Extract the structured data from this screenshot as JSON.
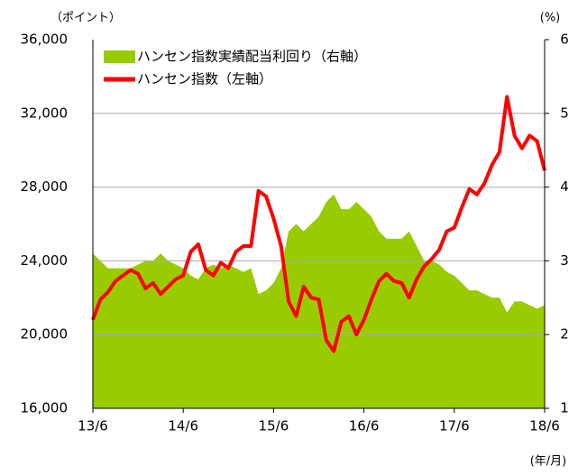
{
  "chart_data": {
    "type": "line",
    "y_unit_label": "（ポイント）",
    "y2_unit_label": "(%)",
    "x_unit_label": "(年/月)",
    "categories": [
      "13/6",
      null,
      null,
      null,
      null,
      null,
      null,
      null,
      null,
      null,
      null,
      null,
      "14/6",
      null,
      null,
      null,
      null,
      null,
      null,
      null,
      null,
      null,
      null,
      null,
      "15/6",
      null,
      null,
      null,
      null,
      null,
      null,
      null,
      null,
      null,
      null,
      null,
      "16/6",
      null,
      null,
      null,
      null,
      null,
      null,
      null,
      null,
      null,
      null,
      null,
      "17/6",
      null,
      null,
      null,
      null,
      null,
      null,
      null,
      null,
      null,
      null,
      null,
      "18/6"
    ],
    "series": [
      {
        "name": "ハンセン指数実績配当利回り（右軸）",
        "type": "area",
        "axis": "y2",
        "color": "#99cc00",
        "values": [
          3.1,
          3.0,
          2.9,
          2.9,
          2.9,
          2.9,
          2.95,
          3.0,
          3.0,
          3.1,
          3.0,
          2.95,
          2.9,
          2.8,
          2.75,
          2.9,
          2.95,
          2.9,
          2.95,
          2.9,
          2.85,
          2.9,
          2.55,
          2.6,
          2.7,
          2.9,
          3.4,
          3.5,
          3.4,
          3.5,
          3.6,
          3.8,
          3.9,
          3.7,
          3.7,
          3.8,
          3.7,
          3.6,
          3.4,
          3.3,
          3.3,
          3.3,
          3.4,
          3.2,
          3.0,
          3.0,
          2.95,
          2.85,
          2.8,
          2.7,
          2.6,
          2.6,
          2.55,
          2.5,
          2.5,
          2.3,
          2.45,
          2.45,
          2.4,
          2.35,
          2.4
        ]
      },
      {
        "name": "ハンセン指数（左軸）",
        "type": "line",
        "axis": "y",
        "color": "#ff0000",
        "values": [
          20800,
          21900,
          22300,
          22900,
          23200,
          23500,
          23300,
          22500,
          22800,
          22200,
          22600,
          23000,
          23200,
          24500,
          24900,
          23500,
          23200,
          23900,
          23600,
          24500,
          24800,
          24800,
          27800,
          27500,
          26300,
          24800,
          21800,
          21000,
          22600,
          22000,
          21900,
          19700,
          19100,
          20700,
          21000,
          20000,
          20800,
          21900,
          22900,
          23300,
          22900,
          22800,
          22000,
          23000,
          23700,
          24100,
          24600,
          25600,
          25800,
          26900,
          27900,
          27600,
          28200,
          29200,
          29900,
          32900,
          30800,
          30100,
          30800,
          30500,
          28900
        ]
      }
    ],
    "ylim": [
      16000,
      36000
    ],
    "yticks": [
      {
        "value": 16000,
        "label": "16,000"
      },
      {
        "value": 20000,
        "label": "20,000"
      },
      {
        "value": 24000,
        "label": "24,000"
      },
      {
        "value": 28000,
        "label": "28,000"
      },
      {
        "value": 32000,
        "label": "32,000"
      },
      {
        "value": 36000,
        "label": "36,000"
      }
    ],
    "y2lim": [
      1,
      6
    ],
    "y2ticks": [
      1,
      2,
      3,
      4,
      5,
      6
    ],
    "grid": true,
    "legend": "top-left"
  }
}
